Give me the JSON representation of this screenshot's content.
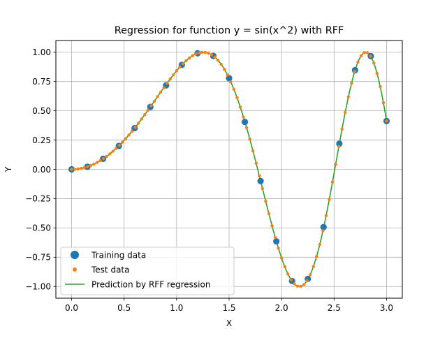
{
  "chart_data": {
    "type": "line",
    "title": "Regression for function y = sin(x^2) with RFF",
    "xlabel": "X",
    "ylabel": "Y",
    "xlim": [
      -0.15,
      3.15
    ],
    "ylim": [
      -1.1,
      1.1
    ],
    "xticks": [
      0.0,
      0.5,
      1.0,
      1.5,
      2.0,
      2.5,
      3.0
    ],
    "xtick_labels": [
      "0.0",
      "0.5",
      "1.0",
      "1.5",
      "2.0",
      "2.5",
      "3.0"
    ],
    "yticks": [
      -1.0,
      -0.75,
      -0.5,
      -0.25,
      0.0,
      0.25,
      0.5,
      0.75,
      1.0
    ],
    "ytick_labels": [
      "−1.00",
      "−0.75",
      "−0.50",
      "−0.25",
      "0.00",
      "0.25",
      "0.50",
      "0.75",
      "1.00"
    ],
    "grid": true,
    "legend_position": "lower-left",
    "series": [
      {
        "name": "Training data",
        "kind": "scatter",
        "color": "#1f77b4",
        "x": [
          0.0,
          0.15,
          0.3,
          0.45,
          0.6,
          0.75,
          0.9,
          1.05,
          1.2,
          1.35,
          1.5,
          1.65,
          1.8,
          1.95,
          2.1,
          2.25,
          2.4,
          2.55,
          2.7,
          2.85,
          3.0
        ],
        "y": [
          0.0,
          0.022,
          0.09,
          0.2,
          0.352,
          0.533,
          0.717,
          0.892,
          0.991,
          0.968,
          0.778,
          0.405,
          -0.1,
          -0.615,
          -0.953,
          -0.935,
          -0.493,
          0.219,
          0.847,
          0.967,
          0.412
        ]
      },
      {
        "name": "Test data",
        "kind": "scatter",
        "color": "#ff7f0e",
        "x_range": [
          0.0,
          3.0
        ],
        "count": 100,
        "function": "sin(x^2)"
      },
      {
        "name": "Prediction by RFF regression",
        "kind": "line",
        "color": "#2ca02c",
        "x_range": [
          0.0,
          3.0
        ],
        "count": 300,
        "function": "sin(x^2)"
      }
    ]
  }
}
